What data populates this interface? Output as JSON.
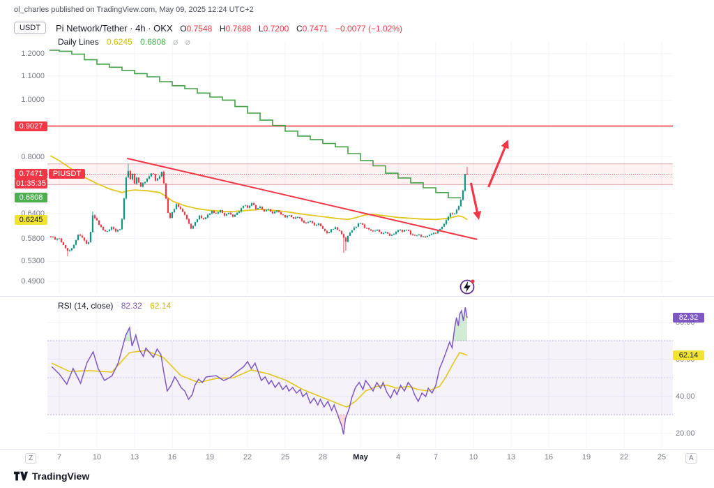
{
  "header": {
    "text": "ol_charles published on TradingView.com, May 09, 2025 12:24 UTC+2"
  },
  "symbol_row": {
    "unit": "USDT",
    "title": "Pi Network/Tether · 4h · OKX",
    "ohlc": {
      "o_label": "O",
      "o": "0.7548",
      "h_label": "H",
      "h": "0.7688",
      "l_label": "L",
      "l": "0.7200",
      "c_label": "C",
      "c": "0.7471",
      "change": "−0.0077 (−1.02%)"
    }
  },
  "indicator_row": {
    "name": "Daily Lines",
    "value_yellow": "0.6245",
    "value_green": "0.6808",
    "visibility_icon": "⌀"
  },
  "rsi_row": {
    "name": "RSI",
    "params": "(14, close)",
    "value_purple": "82.32",
    "value_yellow": "62.14"
  },
  "price_axis": {
    "plain": [
      {
        "label": "1.2000",
        "value": 1.2
      },
      {
        "label": "1.1000",
        "value": 1.1
      },
      {
        "label": "1.0000",
        "value": 1.0
      },
      {
        "label": "0.8000",
        "value": 0.8
      },
      {
        "label": "0.6400",
        "value": 0.64
      },
      {
        "label": "0.5800",
        "value": 0.58
      },
      {
        "label": "0.5300",
        "value": 0.53
      },
      {
        "label": "0.4900",
        "value": 0.49
      }
    ],
    "level_red": {
      "label": "0.9027",
      "value": 0.9027
    },
    "last": {
      "label": "0.7471",
      "value": 0.7471,
      "symbol": "PIUSDT",
      "countdown": "01:35:35"
    },
    "green": {
      "label": "0.6808",
      "value": 0.6808
    },
    "yellow": {
      "label": "0.6245",
      "value": 0.6245
    }
  },
  "rsi_axis": {
    "badges": [
      {
        "label": "82.32",
        "value": 82.32,
        "bg": "#7E57C2",
        "fg": "#ffffff"
      },
      {
        "label": "62.14",
        "value": 62.14,
        "bg": "#F2E231",
        "fg": "#131722"
      }
    ],
    "plain": [
      {
        "label": "80.00",
        "value": 80
      },
      {
        "label": "60.00",
        "value": 60
      },
      {
        "label": "40.00",
        "value": 40
      },
      {
        "label": "20.00",
        "value": 20
      }
    ]
  },
  "time_axis": {
    "left_button": "Z",
    "right_button": "A",
    "ticks": [
      {
        "label": "7",
        "t": 0
      },
      {
        "label": "10",
        "t": 3
      },
      {
        "label": "13",
        "t": 6
      },
      {
        "label": "16",
        "t": 9
      },
      {
        "label": "19",
        "t": 12
      },
      {
        "label": "22",
        "t": 15
      },
      {
        "label": "25",
        "t": 18
      },
      {
        "label": "28",
        "t": 21
      },
      {
        "label": "May",
        "t": 24,
        "bold": true
      },
      {
        "label": "4",
        "t": 27
      },
      {
        "label": "7",
        "t": 30
      },
      {
        "label": "10",
        "t": 33
      },
      {
        "label": "13",
        "t": 36
      },
      {
        "label": "16",
        "t": 39
      },
      {
        "label": "19",
        "t": 42
      },
      {
        "label": "22",
        "t": 45
      },
      {
        "label": "25",
        "t": 48
      }
    ]
  },
  "footer": {
    "brand": "TradingView"
  },
  "colors": {
    "red": "#F23645",
    "green_candle": "#089981",
    "green_line": "#43A047",
    "yellow": "#E2C71D",
    "yellow_text": "#CDBA12",
    "green_text": "#4CAF50",
    "purple": "#7E57C2",
    "axis_text": "#787B86",
    "text": "#131722",
    "grid": "#F0F3FA"
  },
  "chart_data": {
    "type": "candlestick",
    "symbol": "PIUSDT",
    "timeframe": "4h",
    "exchange": "OKX",
    "ohlc_last": {
      "open": 0.7548,
      "high": 0.7688,
      "low": 0.72,
      "close": 0.7471,
      "change": -0.0077,
      "change_pct": -1.02
    },
    "price_anchors": [
      [
        -0.67,
        0.585
      ],
      [
        -0.33,
        0.578
      ],
      [
        0,
        0.58
      ],
      [
        0.33,
        0.565
      ],
      [
        0.67,
        0.552
      ],
      [
        1.0,
        0.558
      ],
      [
        1.33,
        0.576
      ],
      [
        1.5,
        0.59
      ],
      [
        1.83,
        0.583
      ],
      [
        2.17,
        0.568
      ],
      [
        2.4,
        0.574
      ],
      [
        2.67,
        0.635
      ],
      [
        2.9,
        0.628
      ],
      [
        3.17,
        0.612
      ],
      [
        3.5,
        0.6
      ],
      [
        3.83,
        0.596
      ],
      [
        4.17,
        0.606
      ],
      [
        4.5,
        0.596
      ],
      [
        4.83,
        0.603
      ],
      [
        5.0,
        0.625
      ],
      [
        5.17,
        0.68
      ],
      [
        5.33,
        0.735
      ],
      [
        5.5,
        0.758
      ],
      [
        5.67,
        0.732
      ],
      [
        5.83,
        0.75
      ],
      [
        6.0,
        0.72
      ],
      [
        6.17,
        0.737
      ],
      [
        6.5,
        0.712
      ],
      [
        6.83,
        0.727
      ],
      [
        7.17,
        0.742
      ],
      [
        7.42,
        0.756
      ],
      [
        7.67,
        0.73
      ],
      [
        8.0,
        0.742
      ],
      [
        8.17,
        0.757
      ],
      [
        8.42,
        0.7
      ],
      [
        8.58,
        0.655
      ],
      [
        8.75,
        0.625
      ],
      [
        9.0,
        0.643
      ],
      [
        9.33,
        0.662
      ],
      [
        9.67,
        0.652
      ],
      [
        10.0,
        0.638
      ],
      [
        10.25,
        0.618
      ],
      [
        10.5,
        0.603
      ],
      [
        10.83,
        0.617
      ],
      [
        11.17,
        0.635
      ],
      [
        11.5,
        0.625
      ],
      [
        11.83,
        0.637
      ],
      [
        12.17,
        0.646
      ],
      [
        12.5,
        0.64
      ],
      [
        12.83,
        0.648
      ],
      [
        13.17,
        0.636
      ],
      [
        13.5,
        0.642
      ],
      [
        13.83,
        0.631
      ],
      [
        14.17,
        0.64
      ],
      [
        14.5,
        0.653
      ],
      [
        14.75,
        0.662
      ],
      [
        15.0,
        0.655
      ],
      [
        15.33,
        0.668
      ],
      [
        15.67,
        0.651
      ],
      [
        16.0,
        0.657
      ],
      [
        16.33,
        0.646
      ],
      [
        16.67,
        0.652
      ],
      [
        17.0,
        0.641
      ],
      [
        17.33,
        0.647
      ],
      [
        17.67,
        0.637
      ],
      [
        18.0,
        0.631
      ],
      [
        18.33,
        0.637
      ],
      [
        18.67,
        0.626
      ],
      [
        19.0,
        0.632
      ],
      [
        19.33,
        0.621
      ],
      [
        19.67,
        0.616
      ],
      [
        20.0,
        0.621
      ],
      [
        20.33,
        0.611
      ],
      [
        20.67,
        0.616
      ],
      [
        21.0,
        0.601
      ],
      [
        21.33,
        0.591
      ],
      [
        21.67,
        0.601
      ],
      [
        22.0,
        0.606
      ],
      [
        22.33,
        0.596
      ],
      [
        22.58,
        0.585
      ],
      [
        22.83,
        0.572
      ],
      [
        23.08,
        0.591
      ],
      [
        23.42,
        0.601
      ],
      [
        23.75,
        0.612
      ],
      [
        24.0,
        0.617
      ],
      [
        24.33,
        0.606
      ],
      [
        24.67,
        0.6
      ],
      [
        25.0,
        0.596
      ],
      [
        25.33,
        0.601
      ],
      [
        25.67,
        0.591
      ],
      [
        26.0,
        0.596
      ],
      [
        26.33,
        0.586
      ],
      [
        26.67,
        0.591
      ],
      [
        27.0,
        0.601
      ],
      [
        27.33,
        0.596
      ],
      [
        27.67,
        0.601
      ],
      [
        28.0,
        0.591
      ],
      [
        28.33,
        0.586
      ],
      [
        28.67,
        0.589
      ],
      [
        29.0,
        0.583
      ],
      [
        29.33,
        0.586
      ],
      [
        29.67,
        0.591
      ],
      [
        30.0,
        0.593
      ],
      [
        30.33,
        0.601
      ],
      [
        30.67,
        0.616
      ],
      [
        30.92,
        0.626
      ],
      [
        31.17,
        0.641
      ],
      [
        31.42,
        0.636
      ],
      [
        31.67,
        0.651
      ],
      [
        31.92,
        0.662
      ],
      [
        32.17,
        0.703
      ],
      [
        32.33,
        0.748
      ],
      [
        32.42,
        0.762
      ],
      [
        32.5,
        0.7471
      ]
    ],
    "special_wicks": [
      {
        "t": 0.6,
        "low": 0.541
      },
      {
        "t": 2.7,
        "high": 0.645
      },
      {
        "t": 5.5,
        "high": 0.778
      },
      {
        "t": 22.7,
        "low": 0.548
      },
      {
        "t": 22.85,
        "low": 0.553
      },
      {
        "t": 32.42,
        "high": 0.7688
      }
    ],
    "daily_green_steps": {
      "t_start": -1,
      "values": [
        1.217,
        1.212,
        1.198,
        1.172,
        1.152,
        1.138,
        1.124,
        1.11,
        1.096,
        1.075,
        1.058,
        1.046,
        1.028,
        1.012,
        1.0,
        0.975,
        0.95,
        0.924,
        0.905,
        0.885,
        0.868,
        0.856,
        0.843,
        0.832,
        0.81,
        0.788,
        0.772,
        0.75,
        0.736,
        0.722,
        0.708,
        0.695,
        0.6808
      ]
    },
    "yellow_ma": [
      [
        -0.7,
        0.803
      ],
      [
        0,
        0.788
      ],
      [
        1,
        0.762
      ],
      [
        2,
        0.738
      ],
      [
        3,
        0.72
      ],
      [
        4,
        0.705
      ],
      [
        5,
        0.695
      ],
      [
        5.5,
        0.7
      ],
      [
        6,
        0.702
      ],
      [
        7,
        0.7
      ],
      [
        8,
        0.695
      ],
      [
        8.5,
        0.685
      ],
      [
        9,
        0.672
      ],
      [
        10,
        0.66
      ],
      [
        11,
        0.652
      ],
      [
        12,
        0.648
      ],
      [
        13,
        0.645
      ],
      [
        14,
        0.645
      ],
      [
        15,
        0.648
      ],
      [
        16,
        0.65
      ],
      [
        17,
        0.648
      ],
      [
        18,
        0.645
      ],
      [
        19,
        0.64
      ],
      [
        20,
        0.636
      ],
      [
        21,
        0.632
      ],
      [
        22,
        0.628
      ],
      [
        23,
        0.625
      ],
      [
        23.7,
        0.63
      ],
      [
        24.3,
        0.636
      ],
      [
        25,
        0.638
      ],
      [
        26,
        0.634
      ],
      [
        27,
        0.63
      ],
      [
        28,
        0.628
      ],
      [
        29,
        0.626
      ],
      [
        30,
        0.625
      ],
      [
        31,
        0.628
      ],
      [
        31.8,
        0.634
      ],
      [
        32.2,
        0.631
      ],
      [
        32.5,
        0.6245
      ]
    ],
    "trendline": {
      "from": [
        5.4,
        0.795
      ],
      "to": [
        33.3,
        0.578
      ]
    },
    "hline": {
      "value": 0.9027
    },
    "last_price_line": {
      "value": 0.7471
    },
    "zone": {
      "top": 0.778,
      "bottom": 0.717
    },
    "arrows": [
      {
        "from": [
          34.2,
          0.71
        ],
        "to": [
          35.7,
          0.849
        ]
      },
      {
        "from": [
          32.8,
          0.722
        ],
        "to": [
          33.4,
          0.629
        ]
      }
    ],
    "boost_icon_t": 32.5,
    "rsi": {
      "upper_band": 70,
      "lower_band": 30,
      "middle": 50,
      "purple": [
        [
          -0.6,
          56
        ],
        [
          0,
          52
        ],
        [
          0.6,
          46.5
        ],
        [
          1.1,
          55
        ],
        [
          1.7,
          47
        ],
        [
          2.2,
          58
        ],
        [
          2.7,
          64
        ],
        [
          3.1,
          55
        ],
        [
          3.6,
          48.5
        ],
        [
          4.2,
          51
        ],
        [
          4.7,
          58
        ],
        [
          5.3,
          73
        ],
        [
          5.6,
          77
        ],
        [
          5.8,
          67
        ],
        [
          6.1,
          73
        ],
        [
          6.4,
          65
        ],
        [
          6.7,
          61.5
        ],
        [
          6.9,
          66
        ],
        [
          7.2,
          63.5
        ],
        [
          7.5,
          61
        ],
        [
          7.8,
          65.5
        ],
        [
          8.1,
          62.5
        ],
        [
          8.3,
          54
        ],
        [
          8.6,
          42.8
        ],
        [
          8.9,
          45.8
        ],
        [
          9.2,
          50.4
        ],
        [
          9.4,
          48.5
        ],
        [
          9.7,
          44.7
        ],
        [
          10.0,
          42.8
        ],
        [
          10.3,
          38.3
        ],
        [
          10.6,
          40.9
        ],
        [
          10.8,
          45.8
        ],
        [
          11.1,
          49.2
        ],
        [
          11.4,
          47.4
        ],
        [
          11.7,
          50.4
        ],
        [
          12.5,
          51.1
        ],
        [
          13.1,
          48.5
        ],
        [
          13.6,
          50
        ],
        [
          14.2,
          53.4
        ],
        [
          14.7,
          56
        ],
        [
          15.0,
          58.7
        ],
        [
          15.3,
          54.9
        ],
        [
          15.6,
          57.9
        ],
        [
          15.9,
          52.3
        ],
        [
          16.1,
          48.5
        ],
        [
          16.4,
          50.4
        ],
        [
          16.7,
          46.6
        ],
        [
          16.9,
          48.5
        ],
        [
          17.2,
          44.7
        ],
        [
          17.5,
          47.4
        ],
        [
          17.8,
          43.6
        ],
        [
          18.1,
          45.8
        ],
        [
          18.3,
          42.8
        ],
        [
          18.6,
          44.7
        ],
        [
          18.9,
          41.7
        ],
        [
          19.2,
          43.6
        ],
        [
          19.4,
          39.8
        ],
        [
          19.7,
          41.7
        ],
        [
          20.0,
          36.2
        ],
        [
          20.3,
          39
        ],
        [
          20.6,
          35.3
        ],
        [
          20.8,
          38.3
        ],
        [
          21.1,
          34.2
        ],
        [
          21.4,
          37.2
        ],
        [
          21.7,
          32.3
        ],
        [
          21.9,
          35.3
        ],
        [
          22.2,
          29.6
        ],
        [
          22.5,
          24
        ],
        [
          22.65,
          19.4
        ],
        [
          22.8,
          27.7
        ],
        [
          23.1,
          33.4
        ],
        [
          23.3,
          39
        ],
        [
          23.6,
          44.7
        ],
        [
          23.9,
          47.4
        ],
        [
          24.2,
          43.6
        ],
        [
          24.4,
          48.5
        ],
        [
          24.7,
          45.8
        ],
        [
          25.0,
          42.8
        ],
        [
          25.3,
          47.4
        ],
        [
          25.6,
          44.3
        ],
        [
          25.8,
          47.4
        ],
        [
          26.1,
          42.1
        ],
        [
          26.4,
          39
        ],
        [
          26.7,
          43.6
        ],
        [
          26.9,
          40.9
        ],
        [
          27.2,
          45.8
        ],
        [
          27.5,
          42.8
        ],
        [
          27.8,
          47.4
        ],
        [
          28.1,
          44.7
        ],
        [
          28.3,
          40.9
        ],
        [
          28.6,
          37.2
        ],
        [
          28.9,
          41.7
        ],
        [
          29.2,
          39.8
        ],
        [
          29.4,
          44.3
        ],
        [
          29.7,
          41.7
        ],
        [
          30.0,
          45.8
        ],
        [
          30.3,
          54.9
        ],
        [
          30.6,
          59.8
        ],
        [
          30.8,
          63.6
        ],
        [
          31.1,
          69.2
        ],
        [
          31.3,
          66.2
        ],
        [
          31.5,
          76.8
        ],
        [
          31.65,
          82.5
        ],
        [
          31.8,
          78
        ],
        [
          31.9,
          84.3
        ],
        [
          32.05,
          86.2
        ],
        [
          32.2,
          80.6
        ],
        [
          32.35,
          88
        ],
        [
          32.5,
          82.32
        ]
      ],
      "yellow": [
        [
          -0.6,
          57.9
        ],
        [
          0.8,
          53.4
        ],
        [
          2.5,
          53.8
        ],
        [
          4.2,
          53
        ],
        [
          5.6,
          63.6
        ],
        [
          6.9,
          64.7
        ],
        [
          8.3,
          60.9
        ],
        [
          9.7,
          51.1
        ],
        [
          11.1,
          47.4
        ],
        [
          12.5,
          49.6
        ],
        [
          13.9,
          50
        ],
        [
          15.3,
          54.2
        ],
        [
          16.7,
          52
        ],
        [
          18.1,
          48.5
        ],
        [
          19.4,
          43.6
        ],
        [
          20.8,
          39.8
        ],
        [
          22.2,
          36
        ],
        [
          22.9,
          34.1
        ],
        [
          23.6,
          37.2
        ],
        [
          24.4,
          42.8
        ],
        [
          25.3,
          45.3
        ],
        [
          26.1,
          46
        ],
        [
          26.9,
          44.3
        ],
        [
          27.8,
          45.3
        ],
        [
          28.6,
          43.6
        ],
        [
          29.4,
          42.8
        ],
        [
          30.3,
          45.3
        ],
        [
          30.8,
          50.4
        ],
        [
          31.4,
          57.9
        ],
        [
          31.9,
          63.6
        ],
        [
          32.5,
          62.14
        ]
      ]
    }
  }
}
